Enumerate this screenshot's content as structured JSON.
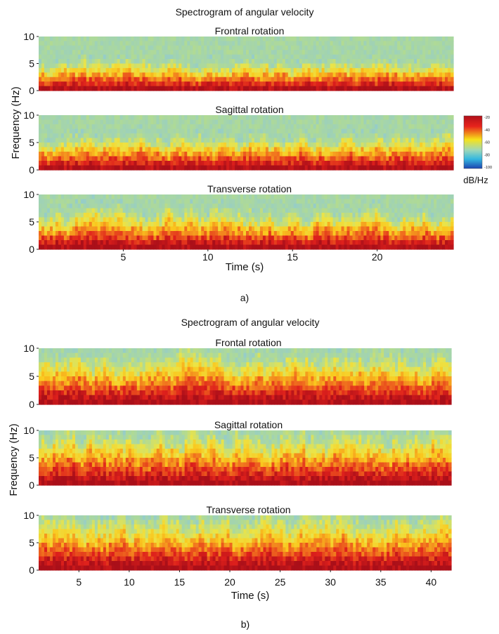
{
  "figure": {
    "colorbar_label": "dB/Hz",
    "colorbar_ticks": [
      "-20",
      "-40",
      "-60",
      "-80",
      "-100"
    ],
    "colorbar_stops": [
      "#b0101a",
      "#e8231c",
      "#f6e21a",
      "#9fd8b8",
      "#35b8e0",
      "#1c44b0"
    ]
  },
  "chart_data": [
    {
      "type": "heatmap",
      "title": "Spectrogram of angular velocity",
      "ylabel": "Frequency (Hz)",
      "xlabel": "Time (s)",
      "caption": "a)",
      "xlim": [
        0,
        24.5
      ],
      "xticks": [
        5,
        10,
        15,
        20
      ],
      "ylim": [
        0,
        10
      ],
      "yticks": [
        0,
        5,
        10
      ],
      "color_scale": {
        "unit": "dB/Hz",
        "range": [
          -100,
          -20
        ]
      },
      "panels": [
        {
          "name": "Frontral rotation",
          "hot_band_top_hz": 3,
          "seed": 11
        },
        {
          "name": "Sagittal rotation",
          "hot_band_top_hz": 3.5,
          "seed": 23
        },
        {
          "name": "Transverse rotation",
          "hot_band_top_hz": 4,
          "seed": 37
        }
      ]
    },
    {
      "type": "heatmap",
      "title": "Spectrogram of angular velocity",
      "ylabel": "Frequency (Hz)",
      "xlabel": "Time (s)",
      "caption": "b)",
      "xlim": [
        1,
        42
      ],
      "xticks": [
        5,
        10,
        15,
        20,
        25,
        30,
        35,
        40
      ],
      "ylim": [
        0,
        10
      ],
      "yticks": [
        0,
        5,
        10
      ],
      "color_scale": {
        "unit": "dB/Hz",
        "range": [
          -100,
          -20
        ]
      },
      "panels": [
        {
          "name": "Frontal rotation",
          "hot_band_top_hz": 5,
          "seed": 51
        },
        {
          "name": "Sagittal rotation",
          "hot_band_top_hz": 5.5,
          "seed": 67
        },
        {
          "name": "Transverse rotation",
          "hot_band_top_hz": 5.5,
          "seed": 83
        }
      ]
    }
  ]
}
